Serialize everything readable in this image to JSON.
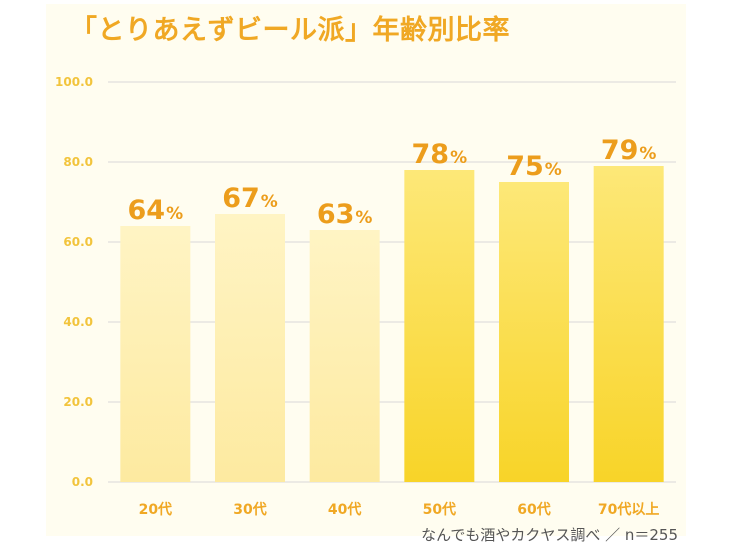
{
  "chart_data": {
    "type": "bar",
    "title": "「とりあえずビール派」年齢別比率",
    "categories": [
      "20代",
      "30代",
      "40代",
      "50代",
      "60代",
      "70代以上"
    ],
    "values": [
      64,
      67,
      63,
      78,
      75,
      79
    ],
    "data_labels": [
      "64",
      "67",
      "63",
      "78",
      "75",
      "79"
    ],
    "value_suffix": "%",
    "ylim": [
      0,
      100
    ],
    "yticks": [
      "0.0",
      "20.0",
      "40.0",
      "60.0",
      "80.0",
      "100.0"
    ],
    "grid": true,
    "xlabel": "",
    "ylabel": "",
    "colors": {
      "light_bar_top": "#fff4c4",
      "light_bar_bottom": "#fdeaa0",
      "bold_bar_top": "#fde878",
      "bold_bar_bottom": "#f8d428",
      "data_label": "#ec9d1c",
      "tick_label": "#f2c43c",
      "grid": "#d8d8d8"
    },
    "highlighted_categories": [
      "50代",
      "60代",
      "70代以上"
    ]
  },
  "source_note": "なんでも酒やカクヤス調べ ／ n＝255"
}
